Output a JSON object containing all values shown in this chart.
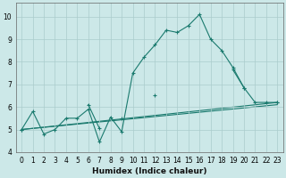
{
  "xlabel": "Humidex (Indice chaleur)",
  "ylabel": "",
  "bg_color": "#cce8e8",
  "line_color": "#1a7a6e",
  "grid_color": "#aacccc",
  "xlim": [
    -0.5,
    23.5
  ],
  "ylim": [
    4.0,
    10.6
  ],
  "yticks": [
    4,
    5,
    6,
    7,
    8,
    9,
    10
  ],
  "xticks": [
    0,
    1,
    2,
    3,
    4,
    5,
    6,
    7,
    8,
    9,
    10,
    11,
    12,
    13,
    14,
    15,
    16,
    17,
    18,
    19,
    20,
    21,
    22,
    23
  ],
  "series_main": {
    "x": [
      0,
      1,
      2,
      3,
      4,
      5,
      6,
      7,
      8,
      9,
      10,
      11,
      12,
      13,
      14,
      15,
      16,
      17,
      18,
      19,
      20,
      21,
      22,
      23
    ],
    "y": [
      5.0,
      5.8,
      4.8,
      5.0,
      5.5,
      5.5,
      5.9,
      4.45,
      5.55,
      4.9,
      7.5,
      8.2,
      8.75,
      9.4,
      9.3,
      9.6,
      10.1,
      9.0,
      8.5,
      7.75,
      6.85,
      6.2,
      6.2,
      6.2
    ]
  },
  "series_straight1": {
    "x": [
      0,
      23
    ],
    "y": [
      5.0,
      6.2
    ]
  },
  "series_straight2": {
    "x": [
      0,
      23
    ],
    "y": [
      5.0,
      6.1
    ]
  },
  "series_medium": {
    "x": [
      0,
      1,
      2,
      3,
      4,
      5,
      6,
      7,
      8,
      9,
      10,
      11,
      12,
      13,
      14,
      15,
      16,
      17,
      18,
      19,
      20,
      21,
      22,
      23
    ],
    "y": [
      5.0,
      null,
      null,
      null,
      null,
      null,
      6.1,
      5.05,
      null,
      5.5,
      null,
      null,
      6.5,
      null,
      null,
      null,
      null,
      null,
      null,
      7.65,
      6.85,
      null,
      null,
      6.2
    ]
  }
}
